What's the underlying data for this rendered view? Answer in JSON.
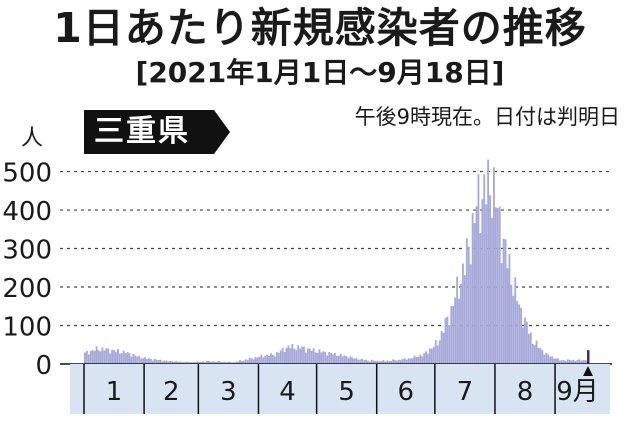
{
  "header": {
    "title": "1日あたり新規感染者の推移",
    "period": "[2021年1月1日～9月18日]"
  },
  "badge": {
    "label": "三重県"
  },
  "note": "午後9時現在。日付は判明日",
  "colors": {
    "bar": "#a7a9d9",
    "axis_band": "#d9e4f2",
    "marker": "#3a2f6b",
    "text": "#1a1a1a"
  },
  "chart_data": {
    "type": "bar",
    "y_unit": "人",
    "ylim": [
      0,
      530
    ],
    "yticks": [
      0,
      100,
      200,
      300,
      400,
      500
    ],
    "ytick_labels": [
      "0",
      "100",
      "200",
      "300",
      "400",
      "500"
    ],
    "grid": true,
    "month_labels": [
      "1",
      "2",
      "3",
      "4",
      "5",
      "6",
      "7",
      "8",
      "9月"
    ],
    "x_start": "2021-01-01",
    "x_end": "2021-09-18",
    "weekly_values": [
      28,
      40,
      35,
      30,
      18,
      12,
      8,
      6,
      5,
      7,
      6,
      5,
      12,
      20,
      25,
      45,
      42,
      34,
      28,
      22,
      14,
      9,
      8,
      10,
      15,
      25,
      55,
      140,
      255,
      425,
      470,
      290,
      150,
      60,
      25,
      10
    ],
    "latest_value": 36
  }
}
